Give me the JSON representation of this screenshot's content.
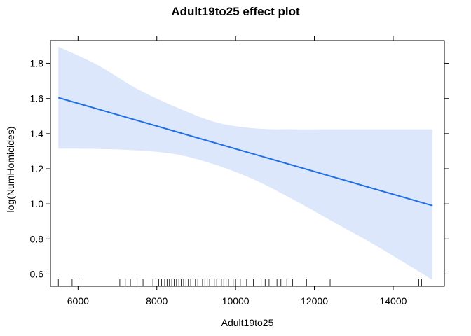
{
  "chart_data": {
    "type": "line",
    "title": "Adult19to25 effect plot",
    "xlabel": "Adult19to25",
    "ylabel": "log(NumHomicides)",
    "xlim": [
      5300,
      15300
    ],
    "ylim": [
      0.53,
      1.93
    ],
    "x_ticks": [
      6000,
      8000,
      10000,
      12000,
      14000
    ],
    "y_ticks": [
      0.6,
      0.8,
      1.0,
      1.2,
      1.4,
      1.6,
      1.8
    ],
    "x_tick_labels": [
      "6000",
      "8000",
      "10000",
      "12000",
      "14000"
    ],
    "y_tick_labels": [
      "0.6",
      "0.8",
      "1.0",
      "1.2",
      "1.4",
      "1.6",
      "1.8"
    ],
    "grid": false,
    "colors": {
      "line": "#1f6fe6",
      "band": "#dce7fb",
      "frame": "#000000"
    },
    "series": [
      {
        "x": [
          5500,
          15000
        ],
        "y": [
          1.605,
          0.99
        ],
        "lower": [
          [
            5500,
            1.315
          ],
          [
            6500,
            1.313
          ],
          [
            7500,
            1.305
          ],
          [
            8500,
            1.282
          ],
          [
            9500,
            1.222
          ],
          [
            10500,
            1.135
          ],
          [
            11500,
            1.02
          ],
          [
            12500,
            0.895
          ],
          [
            13500,
            0.77
          ],
          [
            14500,
            0.635
          ],
          [
            15000,
            0.565
          ]
        ],
        "upper": [
          [
            5500,
            1.895
          ],
          [
            6500,
            1.79
          ],
          [
            7500,
            1.655
          ],
          [
            8500,
            1.55
          ],
          [
            9500,
            1.465
          ],
          [
            10500,
            1.43
          ],
          [
            11500,
            1.425
          ],
          [
            12500,
            1.425
          ],
          [
            13500,
            1.425
          ],
          [
            14500,
            1.425
          ],
          [
            15000,
            1.425
          ]
        ]
      }
    ],
    "rug": [
      5500,
      5850,
      5950,
      6020,
      7060,
      7200,
      7330,
      7500,
      7650,
      7900,
      7980,
      8050,
      8120,
      8200,
      8260,
      8320,
      8380,
      8440,
      8500,
      8560,
      8620,
      8680,
      8740,
      8800,
      8860,
      8920,
      8980,
      9040,
      9100,
      9160,
      9220,
      9280,
      9340,
      9400,
      9460,
      9520,
      9580,
      9640,
      9700,
      9760,
      9820,
      9880,
      9940,
      10000,
      10120,
      10280,
      10450,
      10650,
      10750,
      10850,
      10950,
      11050,
      11150,
      11300,
      11450,
      11800,
      12400,
      14650,
      14720
    ]
  }
}
